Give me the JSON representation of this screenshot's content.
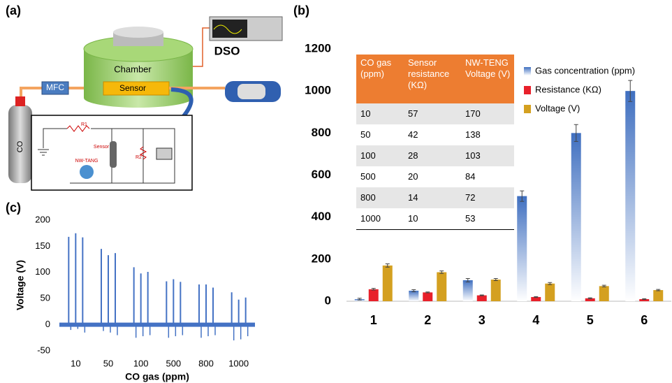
{
  "panels": {
    "a": "(a)",
    "b": "(b)",
    "c": "(c)"
  },
  "diagram": {
    "mfc": "MFC",
    "chamber": "Chamber",
    "sensor": "Sensor",
    "dso": "DSO",
    "co": "CO",
    "r1": "R1",
    "circuit_sensor": "Sensor",
    "r2": "R2",
    "nw_tang": "NW-TANG"
  },
  "chart_data": [
    {
      "type": "bar",
      "categories": [
        "1",
        "2",
        "3",
        "4",
        "5",
        "6"
      ],
      "series": [
        {
          "name": "Gas concentration (ppm)",
          "color": "#3f6fc0",
          "values": [
            10,
            50,
            100,
            500,
            800,
            1000
          ],
          "errors": [
            4,
            5,
            8,
            25,
            40,
            50
          ]
        },
        {
          "name": "Resistance (KΩ)",
          "color": "#e8202a",
          "values": [
            57,
            42,
            28,
            20,
            14,
            10
          ],
          "errors": [
            4,
            2,
            2,
            2,
            2,
            2
          ]
        },
        {
          "name": "Voltage (V)",
          "color": "#d4a020",
          "values": [
            170,
            138,
            103,
            84,
            72,
            53
          ],
          "errors": [
            8,
            6,
            5,
            5,
            4,
            3
          ]
        }
      ],
      "ylim": [
        0,
        1200
      ],
      "yticks": [
        0,
        200,
        400,
        600,
        800,
        1000,
        1200
      ],
      "table": {
        "header": [
          "CO gas (ppm)",
          "Sensor resistance (KΩ)",
          "NW-TENG Voltage (V)"
        ],
        "rows": [
          [
            10,
            57,
            170
          ],
          [
            50,
            42,
            138
          ],
          [
            100,
            28,
            103
          ],
          [
            500,
            20,
            84
          ],
          [
            800,
            14,
            72
          ],
          [
            1000,
            10,
            53
          ]
        ]
      }
    },
    {
      "type": "spikes",
      "xlabel": "CO gas (ppm)",
      "ylabel": "Voltage (V)",
      "categories": [
        "10",
        "50",
        "100",
        "500",
        "800",
        "1000"
      ],
      "peaks": [
        [
          168,
          175,
          167
        ],
        [
          145,
          133,
          137
        ],
        [
          110,
          98,
          101
        ],
        [
          83,
          87,
          82
        ],
        [
          77,
          77,
          71
        ],
        [
          62,
          48,
          52
        ]
      ],
      "troughs": [
        [
          -10,
          -8,
          -15
        ],
        [
          -12,
          -15,
          -20
        ],
        [
          -25,
          -22,
          -20
        ],
        [
          -25,
          -22,
          -20
        ],
        [
          -25,
          -22,
          -20
        ],
        [
          -30,
          -28,
          -22
        ]
      ],
      "color": "#4472c4",
      "ylim": [
        -50,
        200
      ],
      "yticks": [
        -50,
        0,
        50,
        100,
        150,
        200
      ]
    }
  ]
}
